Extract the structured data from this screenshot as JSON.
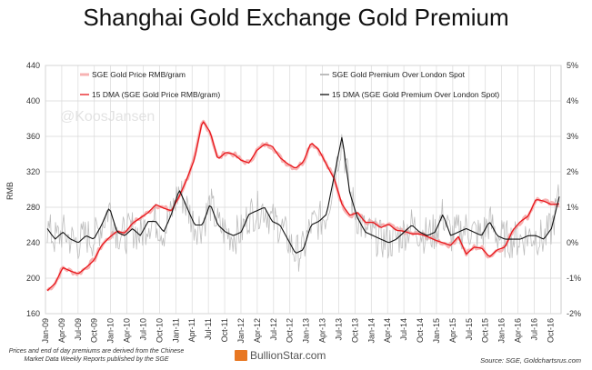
{
  "title": "Shanghai Gold Exchange Gold Premium",
  "watermark": "@KoosJansen",
  "footnote": "Prices and end of day premiums are derived from the Chinese Market Data Weekly Reports published by the SGE",
  "brand": "BullionStar.com",
  "source": "Source: SGE, Goldchartsrus.com",
  "colors": {
    "price_daily": "#f7b3b3",
    "premium_daily": "#bdbdbd",
    "price_dma": "#e8161b",
    "premium_dma": "#111111",
    "grid": "#d9d9d9"
  },
  "chart_data": {
    "type": "line",
    "title": "Shanghai Gold Exchange Gold Premium",
    "ylabel": "RMB",
    "ylim": [
      160,
      440
    ],
    "y2lim": [
      -2,
      5
    ],
    "yticks": [
      "160",
      "200",
      "240",
      "280",
      "320",
      "360",
      "400",
      "440"
    ],
    "y2ticks": [
      "-2%",
      "-1%",
      "0%",
      "1%",
      "2%",
      "3%",
      "4%",
      "5%"
    ],
    "grid": true,
    "legend": "top",
    "xticks": [
      "Jan-09",
      "Apr-09",
      "Jul-09",
      "Oct-09",
      "Jan-10",
      "Apr-10",
      "Jul-10",
      "Oct-10",
      "Jan-11",
      "Apr-11",
      "Jul-11",
      "Oct-11",
      "Jan-12",
      "Apr-12",
      "Jul-12",
      "Oct-12",
      "Jan-13",
      "Apr-13",
      "Jul-13",
      "Oct-13",
      "Jan-14",
      "Apr-14",
      "Jul-14",
      "Oct-14",
      "Jan-15",
      "Apr-15",
      "Jul-15",
      "Oct-15",
      "Jan-16",
      "Apr-16",
      "Jul-16",
      "Oct-16"
    ],
    "series": [
      {
        "name": "SGE Gold Price RMB/gram",
        "axis": "left",
        "style": "daily",
        "values": [
          186,
          194,
          212,
          208,
          205,
          212,
          220,
          237,
          246,
          253,
          251,
          262,
          268,
          274,
          283,
          279,
          276,
          292,
          312,
          335,
          378,
          365,
          334,
          342,
          340,
          333,
          330,
          344,
          351,
          349,
          336,
          329,
          324,
          331,
          353,
          345,
          328,
          312,
          283,
          271,
          274,
          263,
          263,
          257,
          261,
          254,
          253,
          250,
          250,
          247,
          243,
          240,
          237,
          247,
          227,
          235,
          234,
          224,
          232,
          235,
          254,
          264,
          270,
          289,
          287,
          283,
          284
        ]
      },
      {
        "name": "SGE Gold Premium Over London Spot",
        "axis": "right",
        "style": "daily",
        "values": [
          0.4,
          0.1,
          0.3,
          0.1,
          0.0,
          0.2,
          0.1,
          0.5,
          1.0,
          0.3,
          0.2,
          0.4,
          0.2,
          0.6,
          0.6,
          0.3,
          0.8,
          1.5,
          1.0,
          0.5,
          0.5,
          1.1,
          0.5,
          0.3,
          0.2,
          0.3,
          0.8,
          0.9,
          1.0,
          0.6,
          0.5,
          0.1,
          -0.3,
          -0.2,
          0.5,
          0.6,
          0.8,
          1.9,
          3.0,
          1.4,
          0.7,
          0.3,
          0.2,
          0.1,
          0.0,
          0.1,
          0.3,
          0.5,
          0.3,
          0.2,
          0.3,
          0.8,
          0.2,
          0.3,
          0.4,
          0.3,
          0.2,
          0.6,
          0.2,
          0.1,
          0.1,
          0.1,
          0.2,
          0.2,
          0.1,
          0.4,
          1.3
        ]
      },
      {
        "name": "15 DMA (SGE Gold Price RMB/gram)",
        "axis": "left",
        "style": "dma",
        "values": [
          186,
          194,
          212,
          208,
          205,
          212,
          220,
          237,
          246,
          253,
          251,
          262,
          268,
          274,
          283,
          279,
          276,
          292,
          312,
          335,
          378,
          365,
          334,
          342,
          340,
          333,
          330,
          344,
          351,
          349,
          336,
          329,
          324,
          331,
          353,
          345,
          328,
          312,
          283,
          271,
          274,
          263,
          263,
          257,
          261,
          254,
          253,
          250,
          250,
          247,
          243,
          240,
          237,
          247,
          227,
          235,
          234,
          224,
          232,
          235,
          254,
          264,
          270,
          289,
          287,
          283,
          284
        ]
      },
      {
        "name": "15 DMA (SGE Gold Premium Over London Spot)",
        "axis": "right",
        "style": "dma",
        "values": [
          0.4,
          0.1,
          0.3,
          0.1,
          0.0,
          0.2,
          0.1,
          0.5,
          1.0,
          0.3,
          0.2,
          0.4,
          0.2,
          0.6,
          0.6,
          0.3,
          0.8,
          1.5,
          1.0,
          0.5,
          0.5,
          1.1,
          0.5,
          0.3,
          0.2,
          0.3,
          0.8,
          0.9,
          1.0,
          0.6,
          0.5,
          0.1,
          -0.3,
          -0.2,
          0.5,
          0.6,
          0.8,
          1.9,
          3.0,
          1.4,
          0.7,
          0.3,
          0.2,
          0.1,
          0.0,
          0.1,
          0.3,
          0.5,
          0.3,
          0.2,
          0.3,
          0.8,
          0.2,
          0.3,
          0.4,
          0.3,
          0.2,
          0.6,
          0.2,
          0.1,
          0.1,
          0.1,
          0.2,
          0.2,
          0.1,
          0.4,
          1.3
        ]
      }
    ]
  }
}
